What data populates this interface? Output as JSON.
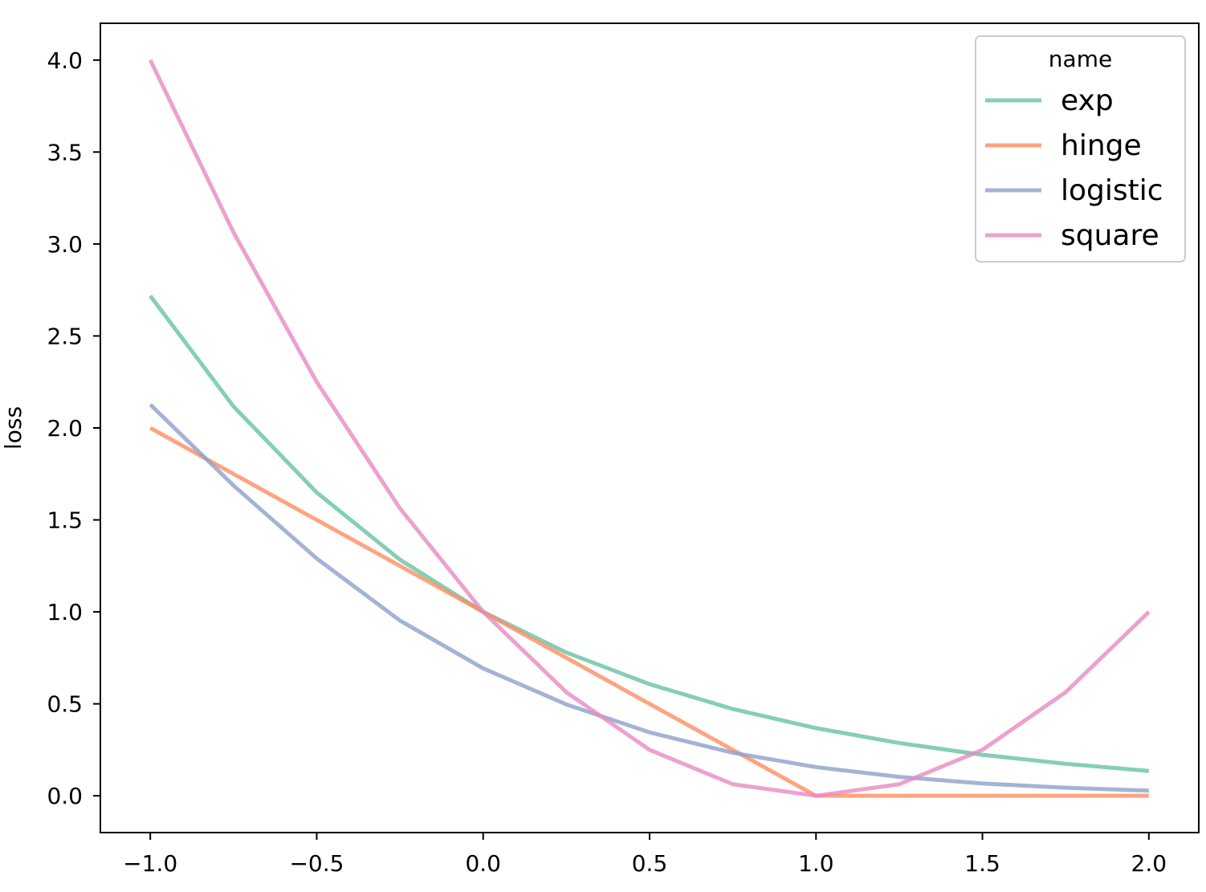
{
  "chart_data": {
    "type": "line",
    "title": "",
    "xlabel": "",
    "ylabel": "loss",
    "xlim": [
      -1.15,
      2.15
    ],
    "ylim": [
      -0.2,
      4.2
    ],
    "xticks": [
      -1.0,
      -0.5,
      0.0,
      0.5,
      1.0,
      1.5,
      2.0
    ],
    "xtick_labels": [
      "−1.0",
      "−0.5",
      "0.0",
      "0.5",
      "1.0",
      "1.5",
      "2.0"
    ],
    "yticks": [
      0.0,
      0.5,
      1.0,
      1.5,
      2.0,
      2.5,
      3.0,
      3.5,
      4.0
    ],
    "ytick_labels": [
      "0.0",
      "0.5",
      "1.0",
      "1.5",
      "2.0",
      "2.5",
      "3.0",
      "3.5",
      "4.0"
    ],
    "grid": false,
    "legend": {
      "title": "name",
      "position": "top-right"
    },
    "x": [
      -1.0,
      -0.75,
      -0.5,
      -0.25,
      0.0,
      0.25,
      0.5,
      0.75,
      1.0,
      1.25,
      1.5,
      1.75,
      2.0
    ],
    "series": [
      {
        "name": "exp",
        "color": "#66c2a5",
        "values": [
          2.718,
          2.117,
          1.649,
          1.284,
          1.0,
          0.779,
          0.607,
          0.472,
          0.368,
          0.287,
          0.223,
          0.174,
          0.135
        ]
      },
      {
        "name": "hinge",
        "color": "#fc8d62",
        "values": [
          2.0,
          1.75,
          1.5,
          1.25,
          1.0,
          0.75,
          0.5,
          0.25,
          0.0,
          0.0,
          0.0,
          0.0,
          0.0
        ]
      },
      {
        "name": "logistic",
        "color": "#8da0cb",
        "values": [
          2.127,
          1.687,
          1.29,
          0.953,
          0.693,
          0.497,
          0.345,
          0.234,
          0.156,
          0.103,
          0.067,
          0.044,
          0.028
        ]
      },
      {
        "name": "square",
        "color": "#e78ac3",
        "values": [
          4.0,
          3.063,
          2.25,
          1.563,
          1.0,
          0.563,
          0.25,
          0.063,
          0.0,
          0.063,
          0.25,
          0.563,
          1.0
        ]
      }
    ]
  }
}
